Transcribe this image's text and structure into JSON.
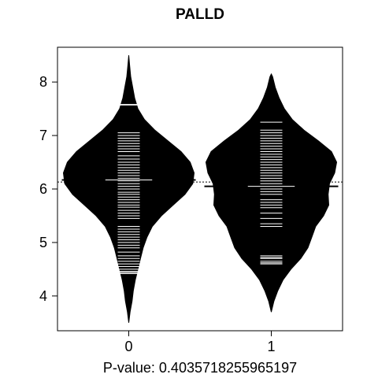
{
  "chart_data": {
    "type": "beanplot",
    "title": "PALLD",
    "xlabel": "P-value: 0.4035718255965197",
    "ylabel": "",
    "categories": [
      "0",
      "1"
    ],
    "ylim": [
      3.35,
      8.65
    ],
    "yticks": [
      4,
      5,
      6,
      7,
      8
    ],
    "overall_mean": 6.13,
    "beans": [
      {
        "name": "0",
        "mean": 6.17,
        "density": [
          [
            3.5,
            0.0
          ],
          [
            3.7,
            0.02
          ],
          [
            3.9,
            0.05
          ],
          [
            4.1,
            0.07
          ],
          [
            4.3,
            0.1
          ],
          [
            4.5,
            0.14
          ],
          [
            4.7,
            0.18
          ],
          [
            4.9,
            0.22
          ],
          [
            5.1,
            0.28
          ],
          [
            5.3,
            0.36
          ],
          [
            5.5,
            0.5
          ],
          [
            5.7,
            0.68
          ],
          [
            5.9,
            0.86
          ],
          [
            6.1,
            0.98
          ],
          [
            6.3,
            1.0
          ],
          [
            6.5,
            0.94
          ],
          [
            6.7,
            0.8
          ],
          [
            6.9,
            0.6
          ],
          [
            7.1,
            0.4
          ],
          [
            7.3,
            0.24
          ],
          [
            7.5,
            0.14
          ],
          [
            7.7,
            0.09
          ],
          [
            7.9,
            0.06
          ],
          [
            8.1,
            0.03
          ],
          [
            8.3,
            0.015
          ],
          [
            8.5,
            0.0
          ]
        ],
        "points": [
          7.58,
          7.57,
          7.05,
          7.0,
          6.95,
          6.9,
          6.85,
          6.8,
          6.75,
          6.7,
          6.62,
          6.56,
          6.5,
          6.45,
          6.4,
          6.35,
          6.3,
          6.25,
          6.2,
          6.15,
          6.1,
          6.05,
          6.0,
          5.94,
          5.9,
          5.85,
          5.8,
          5.75,
          5.7,
          5.66,
          5.6,
          5.55,
          5.5,
          5.45,
          5.3,
          5.25,
          5.2,
          5.15,
          5.1,
          5.05,
          5.0,
          4.95,
          4.9,
          4.82,
          4.75,
          4.7,
          4.65,
          4.6,
          4.55,
          4.5,
          4.46,
          4.44,
          4.42
        ]
      },
      {
        "name": "1",
        "mean": 6.05,
        "density": [
          [
            3.7,
            0.0
          ],
          [
            3.9,
            0.04
          ],
          [
            4.1,
            0.1
          ],
          [
            4.3,
            0.18
          ],
          [
            4.5,
            0.3
          ],
          [
            4.7,
            0.45
          ],
          [
            4.9,
            0.56
          ],
          [
            5.1,
            0.62
          ],
          [
            5.3,
            0.68
          ],
          [
            5.5,
            0.8
          ],
          [
            5.7,
            0.88
          ],
          [
            5.9,
            0.87
          ],
          [
            6.1,
            0.89
          ],
          [
            6.3,
            0.97
          ],
          [
            6.5,
            1.0
          ],
          [
            6.7,
            0.92
          ],
          [
            6.9,
            0.72
          ],
          [
            7.1,
            0.5
          ],
          [
            7.3,
            0.32
          ],
          [
            7.5,
            0.2
          ],
          [
            7.7,
            0.12
          ],
          [
            7.9,
            0.06
          ],
          [
            8.1,
            0.02
          ],
          [
            8.15,
            0.0
          ]
        ],
        "points": [
          7.25,
          7.1,
          7.05,
          7.0,
          6.95,
          6.9,
          6.85,
          6.8,
          6.75,
          6.7,
          6.65,
          6.6,
          6.55,
          6.5,
          6.45,
          6.4,
          6.35,
          6.3,
          6.25,
          6.2,
          6.15,
          6.1,
          6.0,
          5.95,
          5.9,
          5.8,
          5.75,
          5.7,
          5.65,
          5.55,
          5.45,
          5.35,
          5.3,
          4.75,
          4.72,
          4.7,
          4.65,
          4.62,
          4.6
        ]
      }
    ],
    "grid": false,
    "legend": "none"
  }
}
